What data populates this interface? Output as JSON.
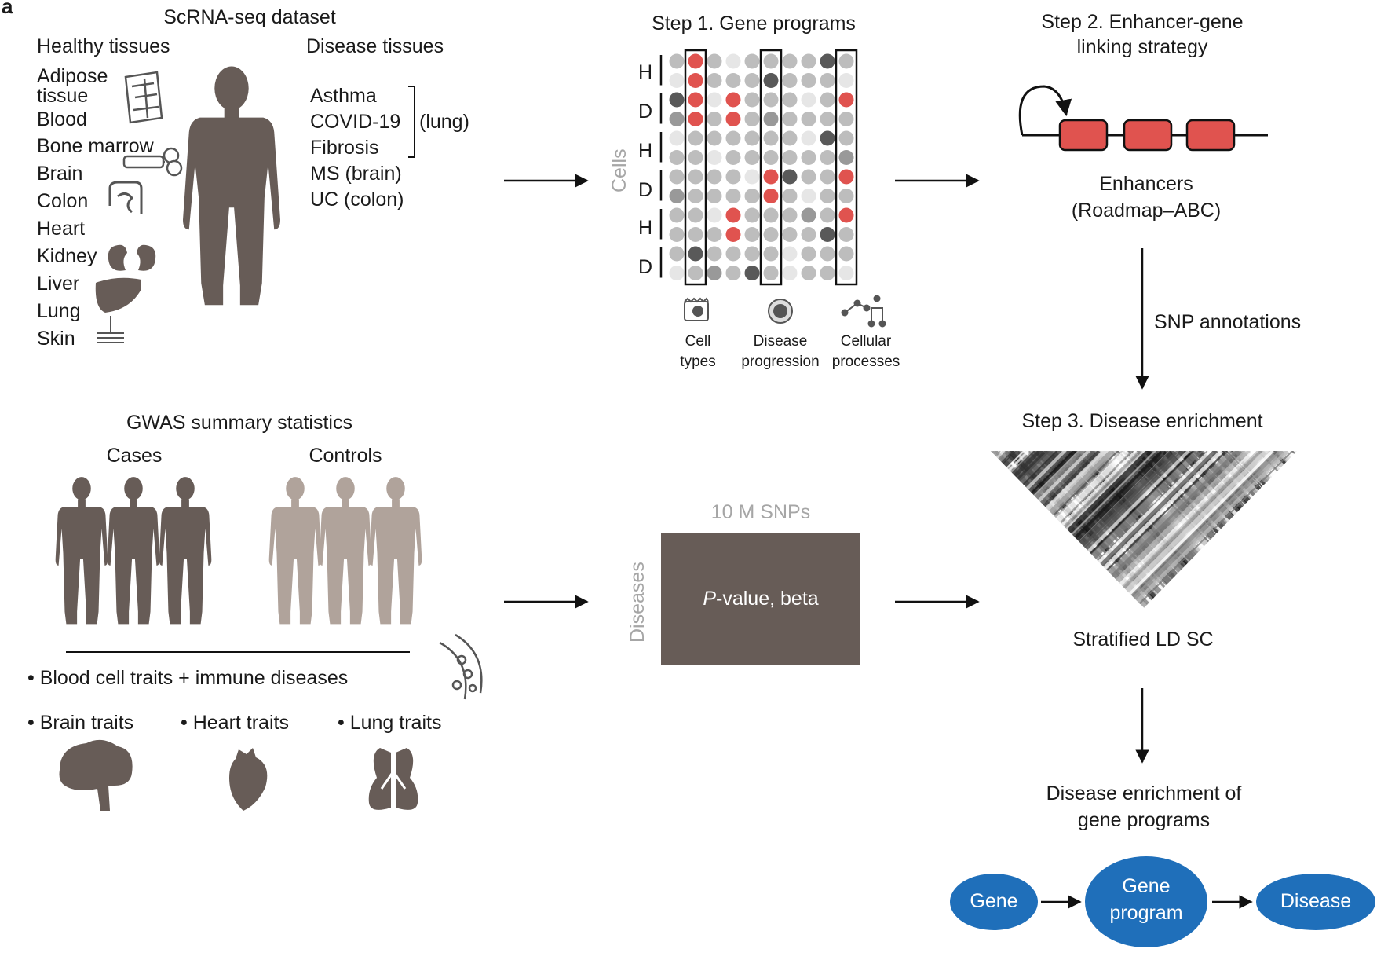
{
  "panel_label": "a",
  "scrna": {
    "title": "ScRNA-seq dataset",
    "healthy_heading": "Healthy tissues",
    "disease_heading": "Disease tissues",
    "healthy_tissues": [
      "Adipose",
      "tissue",
      "Blood",
      "Bone marrow",
      "Brain",
      "Colon",
      "Heart",
      "Kidney",
      "Liver",
      "Lung",
      "Skin"
    ],
    "disease_tissues": [
      "Asthma",
      "COVID-19",
      "Fibrosis",
      "MS (brain)",
      "UC (colon)"
    ],
    "lung_group_label": "(lung)"
  },
  "step1": {
    "title": "Step 1. Gene programs",
    "axis_label": "Cells",
    "row_labels": [
      "H",
      "D",
      "H",
      "D",
      "H",
      "D"
    ],
    "categories": [
      {
        "line1": "Cell",
        "line2": "types"
      },
      {
        "line1": "Disease",
        "line2": "progression"
      },
      {
        "line1": "Cellular",
        "line2": "processes"
      }
    ],
    "colors": {
      "red": "#e0534f",
      "light": "#e6e6e6",
      "mid": "#bdbdbd",
      "midgray": "#999999",
      "dark": "#595959"
    }
  },
  "step2": {
    "title_line1": "Step 2. Enhancer-gene",
    "title_line2": "linking strategy",
    "caption_line1": "Enhancers",
    "caption_line2": "(Roadmap–ABC)",
    "enhancer_color": "#e0534f",
    "arrow_label": "SNP annotations"
  },
  "step3": {
    "title": "Step 3. Disease enrichment",
    "ld_label": "Stratified LD SC",
    "result_line1": "Disease enrichment of",
    "result_line2": "gene programs"
  },
  "gwas": {
    "title": "GWAS summary statistics",
    "cases_label": "Cases",
    "controls_label": "Controls",
    "case_color": "#6b5e57",
    "control_color": "#b0a39b",
    "traits": [
      "Blood cell traits + immune diseases",
      "Brain traits",
      "Heart traits",
      "Lung traits"
    ]
  },
  "matrix": {
    "snps_label": "10 M SNPs",
    "diseases_label": "Diseases",
    "value_italic": "P",
    "value_rest": "-value, beta",
    "fill_color": "#675c57"
  },
  "flow": {
    "nodes": [
      "Gene",
      "Gene",
      "program",
      "Disease"
    ],
    "node_color": "#1f6fba"
  },
  "silhouette_color": "#675c57"
}
